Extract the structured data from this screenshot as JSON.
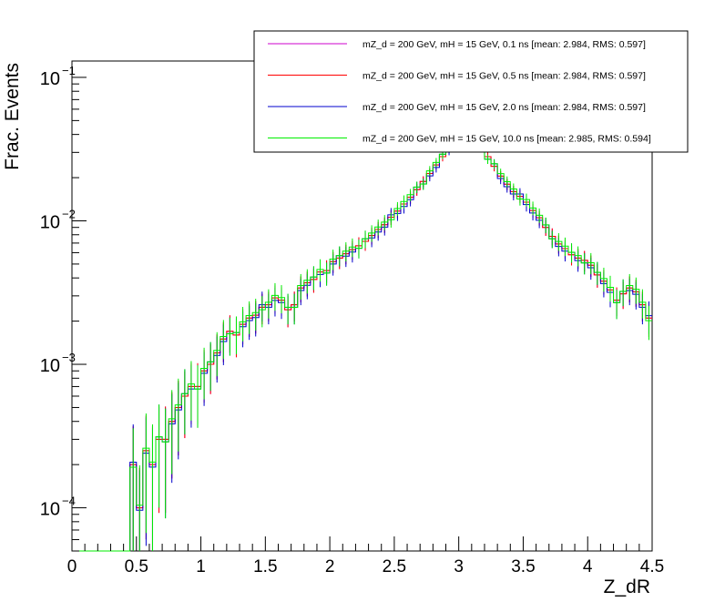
{
  "chart_data": {
    "type": "step-histogram",
    "title": "",
    "xlabel": "Z_dR",
    "ylabel": "Frac. Events",
    "xlim": [
      0,
      4.5
    ],
    "ylim": [
      5e-05,
      0.13
    ],
    "y_scale": "log",
    "x_ticks": [
      "0",
      "0.5",
      "1",
      "1.5",
      "2",
      "2.5",
      "3",
      "3.5",
      "4",
      "4.5"
    ],
    "y_ticks": [
      {
        "base": "10",
        "exp": "−4",
        "value": 0.0001
      },
      {
        "base": "10",
        "exp": "−3",
        "value": 0.001
      },
      {
        "base": "10",
        "exp": "−2",
        "value": 0.01
      },
      {
        "base": "10",
        "exp": "−1",
        "value": 0.1
      }
    ],
    "bin_width": 0.05,
    "legend_position": "top-right",
    "series": [
      {
        "name": "mZ_d = 200 GeV, mH = 15 GeV, 0.1 ns [mean: 2.984, RMS: 0.597]",
        "color": "#cc00cc"
      },
      {
        "name": "mZ_d = 200 GeV, mH = 15 GeV, 0.5 ns [mean: 2.984, RMS: 0.597]",
        "color": "#ff0000"
      },
      {
        "name": "mZ_d = 200 GeV, mH = 15 GeV, 2.0 ns [mean: 2.984, RMS: 0.597]",
        "color": "#0000cc"
      },
      {
        "name": "mZ_d = 200 GeV, mH = 15 GeV, 10.0 ns [mean: 2.985, RMS: 0.594]",
        "color": "#00ee00"
      }
    ],
    "bins_x_start": [
      0.45,
      0.5,
      0.55,
      0.6,
      0.65,
      0.7,
      0.75,
      0.8,
      0.85,
      0.9,
      0.95,
      1.0,
      1.05,
      1.1,
      1.15,
      1.2,
      1.25,
      1.3,
      1.35,
      1.4,
      1.45,
      1.5,
      1.55,
      1.6,
      1.65,
      1.7,
      1.75,
      1.8,
      1.85,
      1.9,
      1.95,
      2.0,
      2.05,
      2.1,
      2.15,
      2.2,
      2.25,
      2.3,
      2.35,
      2.4,
      2.45,
      2.5,
      2.55,
      2.6,
      2.65,
      2.7,
      2.75,
      2.8,
      2.85,
      2.9,
      2.95,
      3.0,
      3.05,
      3.1,
      3.15,
      3.2,
      3.25,
      3.3,
      3.35,
      3.4,
      3.45,
      3.5,
      3.55,
      3.6,
      3.65,
      3.7,
      3.75,
      3.8,
      3.85,
      3.9,
      3.95,
      4.0,
      4.05,
      4.1,
      4.15,
      4.2,
      4.25,
      4.3,
      4.35,
      4.4,
      4.45
    ],
    "bins_y": [
      0.0002,
      0.0001,
      0.00025,
      0.0002,
      0.0003,
      0.0003,
      0.0004,
      0.0005,
      0.0006,
      0.0007,
      0.0007,
      0.0009,
      0.001,
      0.0012,
      0.0015,
      0.0017,
      0.0016,
      0.0019,
      0.0021,
      0.0022,
      0.0025,
      0.0026,
      0.0029,
      0.0028,
      0.0024,
      0.0026,
      0.0034,
      0.0037,
      0.0039,
      0.0044,
      0.0045,
      0.0052,
      0.0055,
      0.0059,
      0.0063,
      0.0067,
      0.0072,
      0.0079,
      0.0087,
      0.0094,
      0.0106,
      0.0117,
      0.0131,
      0.0146,
      0.0165,
      0.0188,
      0.0214,
      0.0245,
      0.028,
      0.032,
      0.036,
      0.04,
      0.042,
      0.04,
      0.034,
      0.028,
      0.024,
      0.0205,
      0.018,
      0.016,
      0.0148,
      0.0135,
      0.0118,
      0.0105,
      0.009,
      0.0078,
      0.0069,
      0.0064,
      0.0058,
      0.0055,
      0.0053,
      0.0049,
      0.0042,
      0.0038,
      0.0033,
      0.0028,
      0.0031,
      0.0034,
      0.0032,
      0.0026,
      0.0021
    ]
  }
}
